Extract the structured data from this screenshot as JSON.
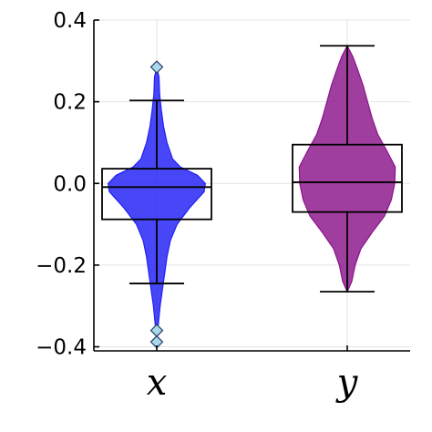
{
  "chart_data": {
    "type": "violin",
    "overlay": "boxplot",
    "categories": [
      "x",
      "y"
    ],
    "ylim": [
      -0.41,
      0.4
    ],
    "yticks": [
      -0.4,
      -0.2,
      0.0,
      0.2,
      0.4
    ],
    "ytick_labels": [
      "−0.4",
      "−0.2",
      "0.0",
      "0.2",
      "0.4"
    ],
    "grid": true,
    "legend": "none",
    "series": [
      {
        "category": "x",
        "color": "#1f1ff5",
        "box": {
          "whisker_low": -0.245,
          "q1": -0.088,
          "median": -0.009,
          "q3": 0.036,
          "whisker_high": 0.203
        },
        "outliers": [
          0.285,
          -0.36,
          -0.388
        ],
        "density_profile": [
          [
            -0.39,
            0.0
          ],
          [
            -0.34,
            0.03
          ],
          [
            -0.3,
            0.06
          ],
          [
            -0.26,
            0.1
          ],
          [
            -0.22,
            0.14
          ],
          [
            -0.18,
            0.18
          ],
          [
            -0.14,
            0.24
          ],
          [
            -0.1,
            0.36
          ],
          [
            -0.06,
            0.58
          ],
          [
            -0.02,
            0.84
          ],
          [
            0.0,
            0.86
          ],
          [
            0.02,
            0.72
          ],
          [
            0.04,
            0.42
          ],
          [
            0.06,
            0.28
          ],
          [
            0.1,
            0.18
          ],
          [
            0.14,
            0.12
          ],
          [
            0.18,
            0.08
          ],
          [
            0.22,
            0.05
          ],
          [
            0.26,
            0.04
          ],
          [
            0.285,
            0.0
          ]
        ]
      },
      {
        "category": "y",
        "color": "#8b148b",
        "box": {
          "whisker_low": -0.265,
          "q1": -0.07,
          "median": 0.003,
          "q3": 0.095,
          "whisker_high": 0.337
        },
        "outliers": [],
        "density_profile": [
          [
            -0.265,
            0.0
          ],
          [
            -0.24,
            0.08
          ],
          [
            -0.2,
            0.14
          ],
          [
            -0.16,
            0.24
          ],
          [
            -0.12,
            0.44
          ],
          [
            -0.08,
            0.66
          ],
          [
            -0.04,
            0.78
          ],
          [
            0.0,
            0.84
          ],
          [
            0.04,
            0.85
          ],
          [
            0.08,
            0.7
          ],
          [
            0.12,
            0.54
          ],
          [
            0.16,
            0.44
          ],
          [
            0.2,
            0.36
          ],
          [
            0.24,
            0.28
          ],
          [
            0.28,
            0.18
          ],
          [
            0.31,
            0.1
          ],
          [
            0.337,
            0.0
          ]
        ]
      }
    ]
  }
}
